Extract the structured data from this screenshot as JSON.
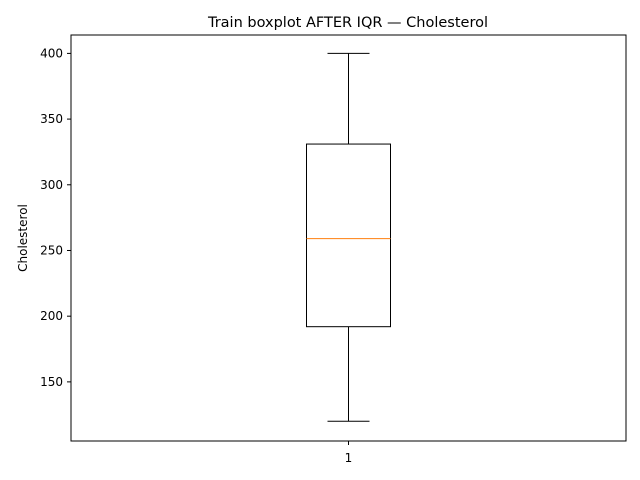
{
  "chart_data": {
    "type": "boxplot",
    "title": "Train boxplot AFTER IQR — Cholesterol",
    "xlabel": "",
    "ylabel": "Cholesterol",
    "categories": [
      "1"
    ],
    "ylim": [
      105,
      414
    ],
    "yticks": [
      150,
      200,
      250,
      300,
      350,
      400
    ],
    "ytick_labels": [
      "150",
      "200",
      "250",
      "300",
      "350",
      "400"
    ],
    "xtick_labels": [
      "1"
    ],
    "grid": false,
    "legend": "none",
    "series": [
      {
        "name": "Cholesterol",
        "whisker_low": 120,
        "q1": 192,
        "median": 259,
        "q3": 331,
        "whisker_high": 400
      }
    ],
    "colors": {
      "box": "#000000",
      "median": "#ff7f0e",
      "whisker": "#000000",
      "axis": "#000000"
    }
  }
}
